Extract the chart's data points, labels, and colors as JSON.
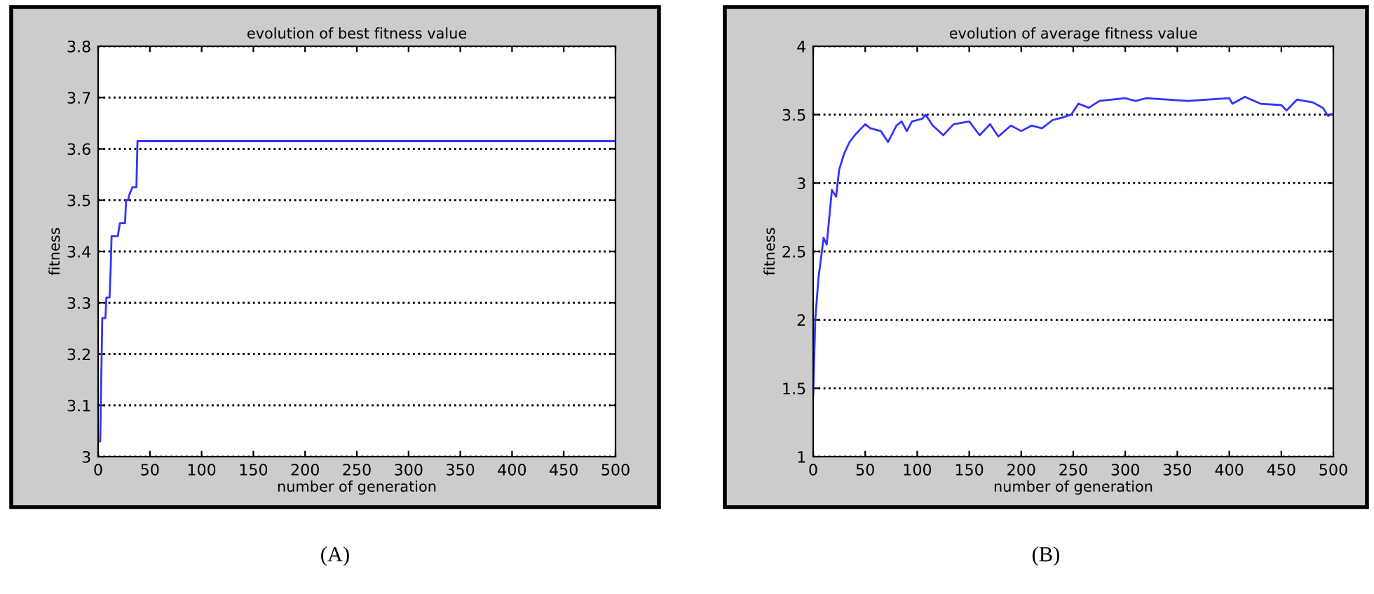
{
  "chart_data": [
    {
      "type": "line",
      "title": "evolution of best fitness value",
      "xlabel": "number of generation",
      "ylabel": "fitness",
      "annotations": [
        "(A)"
      ],
      "series": [
        {
          "color": "#3333ff",
          "x": [
            0,
            2,
            4,
            7,
            8,
            11,
            12,
            13,
            19,
            21,
            26,
            27,
            29,
            30,
            33,
            37,
            38,
            500
          ],
          "values": [
            3.03,
            3.03,
            3.27,
            3.27,
            3.31,
            3.31,
            3.36,
            3.43,
            3.43,
            3.455,
            3.455,
            3.5,
            3.5,
            3.51,
            3.525,
            3.525,
            3.615,
            3.615
          ]
        }
      ],
      "xlim": [
        0,
        500
      ],
      "xticks": [
        0,
        50,
        100,
        150,
        200,
        250,
        300,
        350,
        400,
        450,
        500
      ],
      "ylim": [
        3,
        3.8
      ],
      "yticks": [
        3,
        3.1,
        3.2,
        3.3,
        3.4,
        3.5,
        3.6,
        3.7,
        3.8
      ],
      "grid": "y",
      "line_style": "solid",
      "marker": "none"
    },
    {
      "type": "line",
      "title": "evolution of average fitness value",
      "xlabel": "number of generation",
      "ylabel": "fitness",
      "annotations": [
        "(B)"
      ],
      "series": [
        {
          "color": "#3333ff",
          "x": [
            0,
            2,
            5,
            10,
            13,
            18,
            22,
            25,
            30,
            35,
            40,
            50,
            55,
            65,
            72,
            80,
            85,
            90,
            95,
            105,
            108,
            115,
            125,
            135,
            150,
            160,
            170,
            178,
            190,
            200,
            210,
            220,
            230,
            240,
            248,
            255,
            265,
            275,
            300,
            310,
            320,
            360,
            400,
            403,
            415,
            430,
            450,
            455,
            465,
            480,
            490,
            495,
            500
          ],
          "values": [
            1.45,
            2.0,
            2.3,
            2.6,
            2.55,
            2.95,
            2.9,
            3.1,
            3.22,
            3.3,
            3.35,
            3.43,
            3.4,
            3.38,
            3.3,
            3.42,
            3.45,
            3.38,
            3.45,
            3.47,
            3.5,
            3.42,
            3.35,
            3.43,
            3.45,
            3.35,
            3.43,
            3.34,
            3.42,
            3.38,
            3.42,
            3.4,
            3.46,
            3.48,
            3.5,
            3.58,
            3.55,
            3.6,
            3.62,
            3.6,
            3.62,
            3.6,
            3.62,
            3.58,
            3.63,
            3.58,
            3.57,
            3.53,
            3.61,
            3.59,
            3.55,
            3.49,
            3.51
          ]
        }
      ],
      "xlim": [
        0,
        500
      ],
      "xticks": [
        0,
        50,
        100,
        150,
        200,
        250,
        300,
        350,
        400,
        450,
        500
      ],
      "ylim": [
        1,
        4
      ],
      "yticks": [
        1,
        1.5,
        2,
        2.5,
        3,
        3.5,
        4
      ],
      "grid": "y",
      "line_style": "solid",
      "marker": "none"
    }
  ]
}
